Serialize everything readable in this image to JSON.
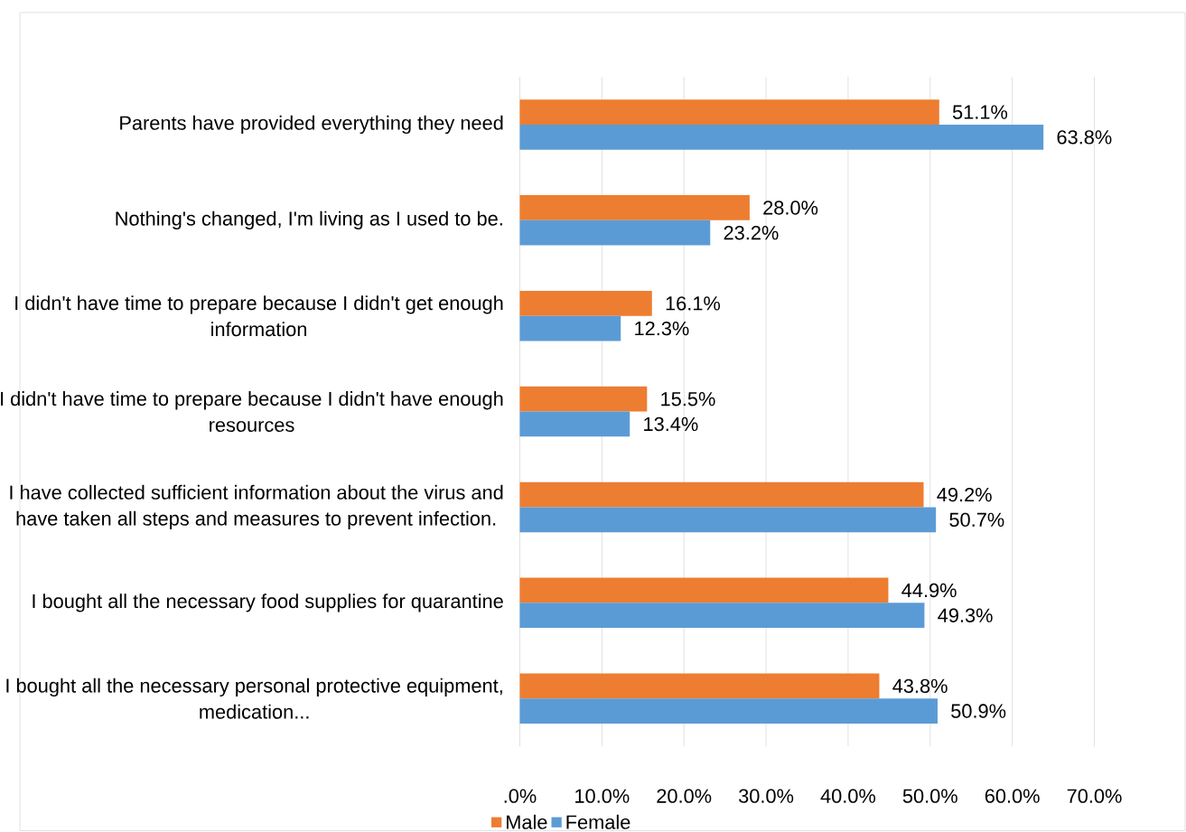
{
  "chart_data": {
    "type": "bar",
    "orientation": "horizontal",
    "categories": [
      "Parents have provided everything they need",
      "Nothing's changed, I'm living as I used to be.",
      "I didn't have time to prepare because I didn't get enough information",
      "I didn't have time to prepare because I didn't have enough resources",
      "I have collected sufficient information about the virus and have taken all steps and measures to prevent infection.",
      "I bought all the necessary food supplies for quarantine",
      "I bought all the necessary personal protective equipment, medication..."
    ],
    "series": [
      {
        "name": "Male",
        "color": "#ed7d31",
        "values": [
          51.1,
          28.0,
          16.1,
          15.5,
          49.2,
          44.9,
          43.8
        ],
        "value_labels": [
          "51.1%",
          "28.0%",
          "16.1%",
          "15.5%",
          "49.2%",
          "44.9%",
          "43.8%"
        ]
      },
      {
        "name": "Female",
        "color": "#5b9bd5",
        "values": [
          63.8,
          23.2,
          12.3,
          13.4,
          50.7,
          49.3,
          50.9
        ],
        "value_labels": [
          "63.8%",
          "23.2%",
          "12.3%",
          "13.4%",
          "50.7%",
          "49.3%",
          "50.9%"
        ]
      }
    ],
    "xlim": [
      0,
      70
    ],
    "xticks": [
      {
        "value": 0,
        "label": ".0%"
      },
      {
        "value": 10,
        "label": "10.0%"
      },
      {
        "value": 20,
        "label": "20.0%"
      },
      {
        "value": 30,
        "label": "30.0%"
      },
      {
        "value": 40,
        "label": "40.0%"
      },
      {
        "value": 50,
        "label": "50.0%"
      },
      {
        "value": 60,
        "label": "60.0%"
      },
      {
        "value": 70,
        "label": "70.0%"
      }
    ],
    "grid": "x",
    "legend": "bottom"
  }
}
